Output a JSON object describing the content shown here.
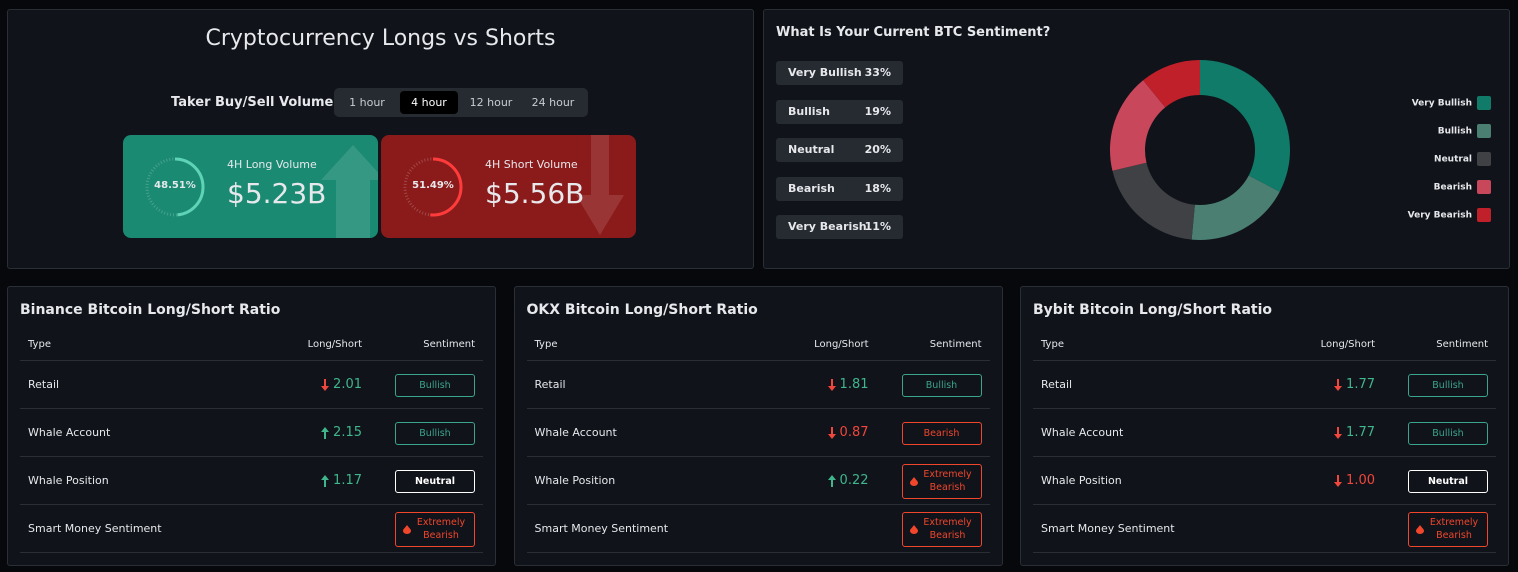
{
  "header": {
    "title": "Cryptocurrency Longs vs Shorts"
  },
  "volume": {
    "label": "Taker Buy/Sell Volume",
    "tabs": [
      "1 hour",
      "4 hour",
      "12 hour",
      "24 hour"
    ],
    "active_tab": 1,
    "long": {
      "title": "4H Long Volume",
      "amount": "$5.23B",
      "percent": {
        "value": 48.51,
        "label": "48.51%"
      }
    },
    "short": {
      "title": "4H Short Volume",
      "amount": "$5.56B",
      "percent": {
        "value": 51.49,
        "label": "51.49%"
      }
    }
  },
  "sentiment": {
    "title": "What Is Your Current BTC Sentiment?",
    "items": [
      {
        "name": "Very Bullish",
        "value": 33,
        "label": "33%",
        "color": "#0f7b68"
      },
      {
        "name": "Bullish",
        "value": 19,
        "label": "19%",
        "color": "#4a7f72"
      },
      {
        "name": "Neutral",
        "value": 20,
        "label": "20%",
        "color": "#3f4144"
      },
      {
        "name": "Bearish",
        "value": 18,
        "label": "18%",
        "color": "#c9475a"
      },
      {
        "name": "Very Bearish",
        "value": 11,
        "label": "11%",
        "color": "#c0202a"
      }
    ]
  },
  "tables": [
    {
      "title": "Binance Bitcoin Long/Short Ratio",
      "columns": [
        "Type",
        "Long/Short",
        "Sentiment"
      ],
      "rows": [
        {
          "type": "Retail",
          "ratio": "2.01",
          "direction": "down",
          "ratio_color": "#3fb68b",
          "sentiment": "Bullish",
          "badge_color": "#3aa58c"
        },
        {
          "type": "Whale Account",
          "ratio": "2.15",
          "direction": "up",
          "ratio_color": "#3fb68b",
          "sentiment": "Bullish",
          "badge_color": "#3aa58c"
        },
        {
          "type": "Whale Position",
          "ratio": "1.17",
          "direction": "up",
          "ratio_color": "#3fb68b",
          "sentiment": "Neutral",
          "badge_color": "#ffffff"
        },
        {
          "type": "Smart Money Sentiment",
          "sentiment": "Extremely Bearish",
          "badge_color": "#f0462c"
        }
      ]
    },
    {
      "title": "OKX Bitcoin Long/Short Ratio",
      "columns": [
        "Type",
        "Long/Short",
        "Sentiment"
      ],
      "rows": [
        {
          "type": "Retail",
          "ratio": "1.81",
          "direction": "down",
          "ratio_color": "#3fb68b",
          "sentiment": "Bullish",
          "badge_color": "#3aa58c"
        },
        {
          "type": "Whale Account",
          "ratio": "0.87",
          "direction": "down",
          "ratio_color": "#f0463c",
          "sentiment": "Bearish",
          "badge_color": "#f0462c"
        },
        {
          "type": "Whale Position",
          "ratio": "0.22",
          "direction": "up",
          "ratio_color": "#3fb68b",
          "sentiment": "Extremely Bearish",
          "badge_color": "#f0462c"
        },
        {
          "type": "Smart Money Sentiment",
          "sentiment": "Extremely Bearish",
          "badge_color": "#f0462c"
        }
      ]
    },
    {
      "title": "Bybit Bitcoin Long/Short Ratio",
      "columns": [
        "Type",
        "Long/Short",
        "Sentiment"
      ],
      "rows": [
        {
          "type": "Retail",
          "ratio": "1.77",
          "direction": "down",
          "ratio_color": "#3fb68b",
          "sentiment": "Bullish",
          "badge_color": "#3aa58c"
        },
        {
          "type": "Whale Account",
          "ratio": "1.77",
          "direction": "down",
          "ratio_color": "#3fb68b",
          "sentiment": "Bullish",
          "badge_color": "#3aa58c"
        },
        {
          "type": "Whale Position",
          "ratio": "1.00",
          "direction": "down",
          "ratio_color": "#f0463c",
          "sentiment": "Neutral",
          "badge_color": "#ffffff"
        },
        {
          "type": "Smart Money Sentiment",
          "sentiment": "Extremely Bearish",
          "badge_color": "#f0462c"
        }
      ]
    }
  ]
}
